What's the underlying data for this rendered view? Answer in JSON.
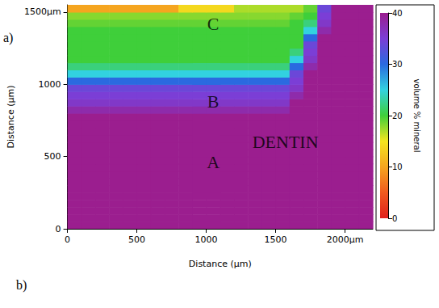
{
  "chart_data": {
    "type": "heatmap",
    "panel_labels": [
      "a)",
      "b)"
    ],
    "x_label": "Distance (µm)",
    "y_label": "Distance (µm)",
    "x": [
      50,
      150,
      250,
      350,
      450,
      550,
      650,
      750,
      850,
      950,
      1050,
      1150,
      1250,
      1350,
      1450,
      1550,
      1650,
      1750,
      1850,
      1950,
      2050,
      2150
    ],
    "y": [
      25,
      75,
      125,
      175,
      225,
      275,
      325,
      375,
      425,
      475,
      525,
      575,
      625,
      675,
      725,
      775,
      825,
      875,
      925,
      975,
      1025,
      1075,
      1125,
      1175,
      1225,
      1275,
      1325,
      1375,
      1425,
      1475,
      1525
    ],
    "values": [
      [
        40,
        40,
        40,
        40,
        40,
        40,
        40,
        40,
        40,
        40,
        40,
        40,
        40,
        40,
        40,
        40,
        40,
        40,
        40,
        40,
        40,
        40
      ],
      [
        40,
        40,
        40,
        40,
        40,
        40,
        40,
        40,
        40,
        40,
        40,
        40,
        40,
        40,
        40,
        40,
        40,
        40,
        40,
        40,
        40,
        40
      ],
      [
        40,
        40,
        40,
        40,
        40,
        40,
        40,
        40,
        40,
        40,
        40,
        40,
        40,
        40,
        40,
        40,
        40,
        40,
        40,
        40,
        40,
        40
      ],
      [
        40,
        40,
        40,
        40,
        40,
        40,
        40,
        40,
        40,
        40,
        40,
        40,
        40,
        40,
        40,
        40,
        40,
        40,
        40,
        40,
        40,
        40
      ],
      [
        40,
        40,
        40,
        40,
        40,
        40,
        40,
        40,
        40,
        40,
        40,
        40,
        40,
        40,
        40,
        40,
        40,
        40,
        40,
        40,
        40,
        40
      ],
      [
        40,
        40,
        40,
        40,
        40,
        40,
        40,
        40,
        40,
        40,
        40,
        40,
        40,
        40,
        40,
        40,
        40,
        40,
        40,
        40,
        40,
        40
      ],
      [
        40,
        40,
        40,
        40,
        40,
        40,
        40,
        40,
        40,
        40,
        40,
        40,
        40,
        40,
        40,
        40,
        40,
        40,
        40,
        40,
        40,
        40
      ],
      [
        40,
        40,
        40,
        40,
        40,
        40,
        40,
        40,
        40,
        40,
        40,
        40,
        40,
        40,
        40,
        40,
        40,
        40,
        40,
        40,
        40,
        40
      ],
      [
        40,
        40,
        40,
        40,
        40,
        40,
        40,
        40,
        40,
        40,
        40,
        40,
        40,
        40,
        40,
        40,
        40,
        40,
        40,
        40,
        40,
        40
      ],
      [
        40,
        40,
        40,
        40,
        40,
        40,
        40,
        40,
        40,
        40,
        40,
        40,
        40,
        40,
        40,
        40,
        40,
        40,
        40,
        40,
        40,
        40
      ],
      [
        40,
        40,
        40,
        40,
        40,
        40,
        40,
        40,
        40,
        40,
        40,
        40,
        40,
        40,
        40,
        40,
        40,
        40,
        40,
        40,
        40,
        40
      ],
      [
        40,
        40,
        40,
        40,
        40,
        40,
        40,
        40,
        40,
        40,
        40,
        40,
        40,
        40,
        40,
        40,
        40,
        40,
        40,
        40,
        40,
        40
      ],
      [
        40,
        40,
        40,
        40,
        40,
        40,
        40,
        40,
        40,
        40,
        40,
        40,
        40,
        40,
        40,
        40,
        40,
        40,
        40,
        40,
        40,
        40
      ],
      [
        40,
        40,
        40,
        40,
        40,
        40,
        40,
        40,
        40,
        40,
        40,
        40,
        40,
        40,
        40,
        40,
        40,
        40,
        40,
        40,
        40,
        40
      ],
      [
        40,
        40,
        40,
        40,
        40,
        40,
        40,
        40,
        40,
        40,
        40,
        40,
        40,
        40,
        40,
        40,
        40,
        40,
        40,
        40,
        40,
        40
      ],
      [
        40,
        40,
        40,
        40,
        40,
        40,
        40,
        40,
        40,
        40,
        40,
        40,
        40,
        40,
        40,
        40,
        40,
        40,
        40,
        40,
        40,
        40
      ],
      [
        38,
        38,
        38,
        38,
        38,
        38,
        38,
        38,
        38,
        38,
        38,
        38,
        38,
        38,
        38,
        38,
        40,
        40,
        40,
        40,
        40,
        40
      ],
      [
        36,
        36,
        36,
        36,
        36,
        36,
        36,
        36,
        36,
        36,
        36,
        36,
        36,
        36,
        36,
        36,
        40,
        40,
        40,
        40,
        40,
        40
      ],
      [
        35,
        35,
        35,
        35,
        35,
        35,
        35,
        35,
        35,
        35,
        35,
        35,
        35,
        35,
        35,
        35,
        38,
        40,
        40,
        40,
        40,
        40
      ],
      [
        34,
        34,
        34,
        34,
        34,
        34,
        34,
        34,
        34,
        34,
        34,
        34,
        34,
        34,
        34,
        34,
        36,
        40,
        40,
        40,
        40,
        40
      ],
      [
        30,
        30,
        30,
        30,
        30,
        30,
        30,
        30,
        30,
        30,
        30,
        30,
        30,
        30,
        30,
        30,
        35,
        40,
        40,
        40,
        40,
        40
      ],
      [
        25,
        25,
        25,
        25,
        25,
        25,
        25,
        25,
        25,
        25,
        25,
        25,
        25,
        25,
        25,
        25,
        34,
        40,
        40,
        40,
        40,
        40
      ],
      [
        22,
        22,
        22,
        22,
        22,
        22,
        22,
        22,
        22,
        22,
        22,
        22,
        22,
        22,
        22,
        22,
        30,
        38,
        40,
        40,
        40,
        40
      ],
      [
        20,
        20,
        20,
        20,
        20,
        20,
        20,
        20,
        20,
        20,
        20,
        20,
        20,
        20,
        20,
        20,
        25,
        36,
        40,
        40,
        40,
        40
      ],
      [
        20,
        20,
        20,
        20,
        20,
        20,
        20,
        20,
        20,
        20,
        20,
        20,
        20,
        20,
        20,
        20,
        22,
        35,
        40,
        40,
        40,
        40
      ],
      [
        20,
        20,
        20,
        20,
        20,
        20,
        20,
        20,
        20,
        20,
        20,
        20,
        20,
        20,
        20,
        20,
        20,
        34,
        40,
        40,
        40,
        40
      ],
      [
        20,
        20,
        20,
        20,
        20,
        20,
        20,
        20,
        20,
        20,
        20,
        20,
        20,
        20,
        20,
        20,
        20,
        30,
        40,
        40,
        40,
        40
      ],
      [
        20,
        20,
        20,
        20,
        20,
        20,
        20,
        20,
        20,
        20,
        20,
        20,
        20,
        20,
        20,
        20,
        20,
        25,
        38,
        40,
        40,
        40
      ],
      [
        19,
        19,
        19,
        19,
        19,
        19,
        19,
        19,
        19,
        19,
        19,
        19,
        19,
        19,
        19,
        19,
        20,
        22,
        36,
        40,
        40,
        40
      ],
      [
        18,
        18,
        18,
        18,
        18,
        18,
        18,
        18,
        18,
        18,
        18,
        18,
        18,
        18,
        18,
        18,
        19,
        20,
        35,
        40,
        40,
        40
      ],
      [
        10,
        10,
        10,
        10,
        10,
        10,
        10,
        10,
        14,
        14,
        14,
        14,
        17,
        17,
        17,
        17,
        17,
        19,
        34,
        40,
        40,
        40
      ]
    ],
    "xlim": [
      0,
      2200
    ],
    "ylim": [
      0,
      1550
    ],
    "xticks": [
      0,
      500,
      1000,
      1500,
      {
        "value": 2000,
        "label": "2000µm"
      }
    ],
    "yticks": [
      0,
      500,
      1000,
      {
        "value": 1500,
        "label": "1500µm"
      }
    ],
    "colorbar": {
      "label": "volume % mineral",
      "range": [
        0,
        40
      ],
      "ticks": [
        0,
        10,
        20,
        30,
        40
      ]
    },
    "annotations": [
      {
        "text": "C",
        "x": 1050,
        "y": 1420
      },
      {
        "text": "B",
        "x": 1050,
        "y": 880
      },
      {
        "text": "A",
        "x": 1050,
        "y": 460
      },
      {
        "text": "DENTIN",
        "x": 1570,
        "y": 600
      }
    ]
  }
}
